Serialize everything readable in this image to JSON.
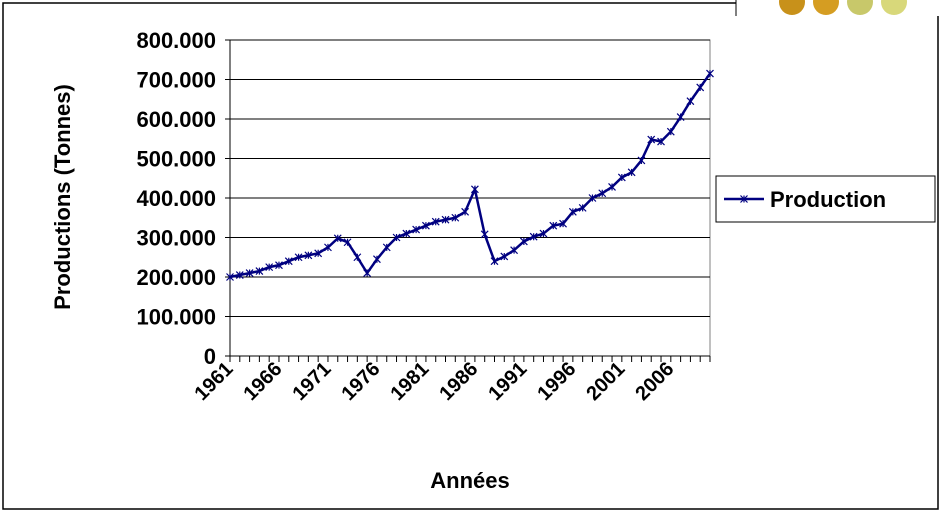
{
  "chart_data": {
    "type": "line",
    "x": [
      1961,
      1962,
      1963,
      1964,
      1965,
      1966,
      1967,
      1968,
      1969,
      1970,
      1971,
      1972,
      1973,
      1974,
      1975,
      1976,
      1977,
      1978,
      1979,
      1980,
      1981,
      1982,
      1983,
      1984,
      1985,
      1986,
      1987,
      1988,
      1989,
      1990,
      1991,
      1992,
      1993,
      1994,
      1995,
      1996,
      1997,
      1998,
      1999,
      2000,
      2001,
      2002,
      2003,
      2004,
      2005,
      2006,
      2007,
      2008,
      2009,
      2010
    ],
    "series": [
      {
        "name": "Production",
        "color": "#000080",
        "values": [
          200000,
          205000,
          210000,
          215000,
          225000,
          230000,
          240000,
          250000,
          255000,
          260000,
          275000,
          298000,
          288000,
          250000,
          210000,
          245000,
          275000,
          300000,
          310000,
          320000,
          330000,
          340000,
          345000,
          350000,
          365000,
          422000,
          308000,
          240000,
          252000,
          268000,
          290000,
          302000,
          310000,
          330000,
          335000,
          365000,
          375000,
          400000,
          412000,
          428000,
          452000,
          465000,
          495000,
          548000,
          543000,
          568000,
          605000,
          645000,
          680000,
          715000
        ]
      }
    ],
    "xlim": [
      1961,
      2010
    ],
    "xticks": [
      1961,
      1966,
      1971,
      1976,
      1981,
      1986,
      1991,
      1996,
      2001,
      2006
    ],
    "ylim": [
      0,
      800000
    ],
    "yticks": [
      0,
      {
        "value": 100000,
        "label": "100.000"
      },
      {
        "value": 200000,
        "label": "200.000"
      },
      {
        "value": 300000,
        "label": "300.000"
      },
      {
        "value": 400000,
        "label": "400.000"
      },
      {
        "value": 500000,
        "label": "500.000"
      },
      {
        "value": 600000,
        "label": "600.000"
      },
      {
        "value": 700000,
        "label": "700.000"
      },
      {
        "value": 800000,
        "label": "800.000"
      }
    ],
    "grid": true,
    "x_label": "Années",
    "y_label": "Productions (Tonnes)",
    "legend": "right"
  }
}
